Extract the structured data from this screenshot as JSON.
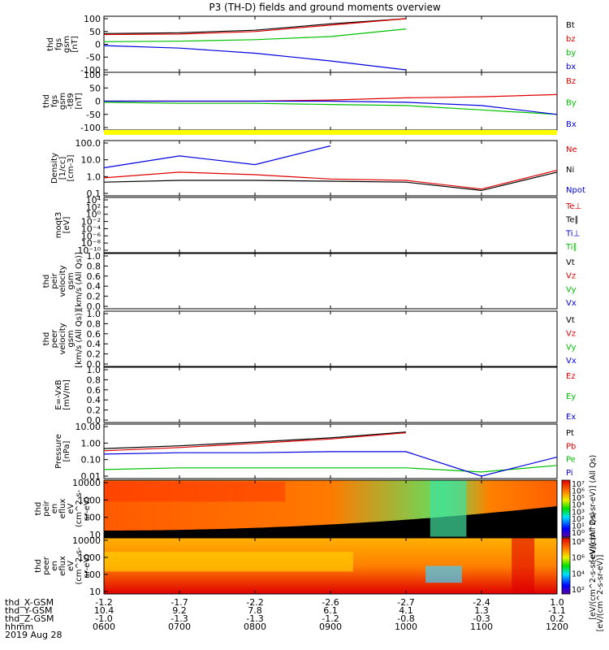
{
  "title": "P3 (TH-D) fields and ground moments overview",
  "date": "2019 Aug 28",
  "panels": [
    {
      "id": "fgs",
      "type": "line",
      "ylabel": [
        "thd",
        "fgs",
        "gsm",
        "[nT]"
      ],
      "yticks": [
        "100",
        "50",
        "0",
        "-50",
        "-100"
      ],
      "ylim": [
        -100,
        100
      ],
      "legend": [
        {
          "name": "Bt",
          "color": "#000000"
        },
        {
          "name": "bz",
          "color": "#e00000"
        },
        {
          "name": "by",
          "color": "#00c000"
        },
        {
          "name": "bx",
          "color": "#0000e0"
        }
      ]
    },
    {
      "id": "fgs_t89",
      "type": "line",
      "ylabel": [
        "thd",
        "fgs",
        "gsm",
        "-t89",
        "[nT]"
      ],
      "yticks": [
        "100",
        "50",
        "0",
        "-50",
        "-100"
      ],
      "ylim": [
        -120,
        120
      ],
      "legend": [
        {
          "name": "Bz",
          "color": "#e00000"
        },
        {
          "name": "By",
          "color": "#00c000"
        },
        {
          "name": "Bx",
          "color": "#0000e0"
        }
      ]
    },
    {
      "id": "density",
      "type": "line",
      "ylabel": [
        "Density",
        "[1/cc]",
        "[cm-3]"
      ],
      "yticks": [
        "100.0",
        "10.0",
        "1.0",
        "0.1"
      ],
      "scale": "log",
      "legend": [
        {
          "name": "Ne",
          "color": "#e00000"
        },
        {
          "name": "Ni",
          "color": "#000000"
        },
        {
          "name": "Npot",
          "color": "#0000e0"
        }
      ]
    },
    {
      "id": "temp",
      "type": "line",
      "ylabel": [
        "moqt3",
        "[eV]"
      ],
      "yticks": [
        "10⁴",
        "10²",
        "10⁰",
        "10⁻²",
        "10⁻⁴",
        "10⁻⁶",
        "10⁻⁸",
        "10⁻¹⁰"
      ],
      "scale": "log",
      "legend": [
        {
          "name": "Te⊥",
          "color": "#e00000"
        },
        {
          "name": "Te∥",
          "color": "#000000"
        },
        {
          "name": "Ti⊥",
          "color": "#0000e0"
        },
        {
          "name": "Ti∥",
          "color": "#00c000"
        }
      ]
    },
    {
      "id": "peir_vel",
      "type": "line",
      "ylabel": [
        "thd",
        "peir",
        "velocity",
        "gsm",
        "[km/s (All Qs)]"
      ],
      "yticks": [
        "1.0",
        "0.8",
        "0.6",
        "0.4",
        "0.2",
        "0.0"
      ],
      "ylim": [
        0,
        1
      ],
      "legend": [
        {
          "name": "Vt",
          "color": "#000000"
        },
        {
          "name": "Vz",
          "color": "#e00000"
        },
        {
          "name": "Vy",
          "color": "#00c000"
        },
        {
          "name": "Vx",
          "color": "#0000e0"
        }
      ]
    },
    {
      "id": "peer_vel",
      "type": "line",
      "ylabel": [
        "thd",
        "peer",
        "velocity",
        "gsm",
        "[km/s (All Qs)]"
      ],
      "yticks": [
        "1.0",
        "0.8",
        "0.6",
        "0.4",
        "0.2",
        "0.0"
      ],
      "ylim": [
        0,
        1
      ],
      "legend": [
        {
          "name": "Vt",
          "color": "#000000"
        },
        {
          "name": "Vz",
          "color": "#e00000"
        },
        {
          "name": "Vy",
          "color": "#00c000"
        },
        {
          "name": "Vx",
          "color": "#0000e0"
        }
      ]
    },
    {
      "id": "efield",
      "type": "line",
      "ylabel": [
        "E=-VxB",
        "[mV/m]"
      ],
      "yticks": [
        "1.0",
        "0.8",
        "0.6",
        "0.4",
        "0.2",
        "0.0"
      ],
      "ylim": [
        0,
        1
      ],
      "legend": [
        {
          "name": "Ez",
          "color": "#e00000"
        },
        {
          "name": "Ey",
          "color": "#00c000"
        },
        {
          "name": "Ex",
          "color": "#0000e0"
        }
      ]
    },
    {
      "id": "pressure",
      "type": "line",
      "ylabel": [
        "Pressure",
        "[nPa]"
      ],
      "yticks": [
        "10.00",
        "1.00",
        "0.10",
        "0.01"
      ],
      "scale": "log",
      "legend": [
        {
          "name": "Pt",
          "color": "#000000"
        },
        {
          "name": "Pb",
          "color": "#e00000"
        },
        {
          "name": "Pe",
          "color": "#00c000"
        },
        {
          "name": "Pi",
          "color": "#0000e0"
        }
      ]
    },
    {
      "id": "peir_spec",
      "type": "heatmap",
      "ylabel": [
        "thd",
        "peir",
        "en",
        "eflux",
        "eV",
        "(cm^2-s-",
        "sr-eV)"
      ],
      "yticks": [
        "10000",
        "1000",
        "100",
        "10"
      ],
      "colorbar": [
        "10⁷",
        "10⁶",
        "10⁵",
        "10⁴",
        "10³",
        "10²",
        "10¹",
        "10⁰"
      ],
      "cbar_label": "[eV/(cm^2-s-sr-eV)] (All Qs)"
    },
    {
      "id": "peer_spec",
      "type": "heatmap",
      "ylabel": [
        "thd",
        "peer",
        "en",
        "eflux",
        "eV",
        "(cm^2-s-",
        "sr-eV)"
      ],
      "yticks": [
        "10000",
        "1000",
        "100",
        "10"
      ],
      "colorbar": [
        "10⁸",
        "10⁶",
        "10⁴",
        "10²"
      ],
      "cbar_label": "[eV/(cm^2-s-sr-eV)] (All Qs)"
    }
  ],
  "xaxis": {
    "rows": [
      {
        "label": "thd_X-GSM",
        "values": [
          "-1.2",
          "-1.7",
          "-2.2",
          "-2.6",
          "-2.7",
          "-2.4",
          "1.0"
        ]
      },
      {
        "label": "thd_Y-GSM",
        "values": [
          "10.4",
          "9.2",
          "7.8",
          "6.1",
          "4.1",
          "1.3",
          "-1.1"
        ]
      },
      {
        "label": "thd_Z-GSM",
        "values": [
          "-1.0",
          "-1.3",
          "-1.3",
          "-1.2",
          "-0.8",
          "-0.3",
          "0.2"
        ]
      },
      {
        "label": "hhmm",
        "values": [
          "0600",
          "0700",
          "0800",
          "0900",
          "1000",
          "1100",
          "1200"
        ]
      }
    ]
  },
  "cbar_axis_label": "[eV/(cm^2-s-sr-eV)]",
  "chart_data": [
    {
      "type": "line",
      "title": "P3 (TH-D) fields and ground moments overview",
      "xlabel": "hhmm",
      "x": [
        "0600",
        "0700",
        "0800",
        "0900",
        "1000",
        "1100",
        "1200"
      ],
      "series": [
        {
          "name": "Bt",
          "values": [
            42,
            45,
            55,
            80,
            100,
            null,
            null
          ]
        },
        {
          "name": "bz",
          "values": [
            38,
            40,
            50,
            75,
            100,
            null,
            null
          ]
        },
        {
          "name": "by",
          "values": [
            10,
            12,
            18,
            30,
            60,
            null,
            null
          ]
        },
        {
          "name": "bx",
          "values": [
            -5,
            -15,
            -35,
            -65,
            -100,
            null,
            null
          ]
        }
      ],
      "ylim": [
        -100,
        100
      ]
    },
    {
      "type": "line",
      "x": [
        "0600",
        "0700",
        "0800",
        "0900",
        "1000",
        "1100",
        "1200"
      ],
      "series": [
        {
          "name": "Bz",
          "values": [
            0,
            0,
            0,
            5,
            15,
            20,
            30
          ]
        },
        {
          "name": "By",
          "values": [
            -5,
            -10,
            -10,
            -15,
            -20,
            -40,
            -60
          ]
        },
        {
          "name": "Bx",
          "values": [
            0,
            0,
            0,
            0,
            -5,
            -20,
            -60
          ]
        }
      ],
      "ylim": [
        -120,
        120
      ]
    },
    {
      "type": "line",
      "x": [
        "0600",
        "0700",
        "0800",
        "0900",
        "1000",
        "1100",
        "1200"
      ],
      "scale": "log",
      "series": [
        {
          "name": "Ne",
          "values": [
            0.6,
            1.5,
            1.0,
            0.5,
            0.4,
            0.1,
            2.0
          ]
        },
        {
          "name": "Ni",
          "values": [
            0.3,
            0.4,
            0.4,
            0.35,
            0.3,
            0.08,
            1.5
          ]
        },
        {
          "name": "Npot",
          "values": [
            3,
            20,
            5,
            100,
            null,
            null,
            null
          ]
        }
      ]
    },
    {
      "type": "line",
      "x": [
        "0600",
        "1200"
      ],
      "series": []
    },
    {
      "type": "line",
      "x": [
        "0600",
        "1200"
      ],
      "series": [],
      "ylim": [
        0,
        1
      ]
    },
    {
      "type": "line",
      "x": [
        "0600",
        "1200"
      ],
      "series": [],
      "ylim": [
        0,
        1
      ]
    },
    {
      "type": "line",
      "x": [
        "0600",
        "1200"
      ],
      "series": [],
      "ylim": [
        0,
        1
      ]
    },
    {
      "type": "line",
      "x": [
        "0600",
        "0700",
        "0800",
        "0900",
        "1000",
        "1100",
        "1200"
      ],
      "scale": "log",
      "series": [
        {
          "name": "Pt",
          "values": [
            0.5,
            0.8,
            1.5,
            3,
            8,
            null,
            null
          ]
        },
        {
          "name": "Pb",
          "values": [
            0.35,
            0.6,
            1.2,
            2.5,
            7,
            null,
            null
          ]
        },
        {
          "name": "Pe",
          "values": [
            0.015,
            0.02,
            0.02,
            0.02,
            0.02,
            0.01,
            0.03
          ]
        },
        {
          "name": "Pi",
          "values": [
            0.2,
            0.25,
            0.25,
            0.3,
            0.3,
            0.005,
            0.12
          ]
        }
      ]
    },
    {
      "type": "heatmap",
      "x": [
        "0600",
        "1200"
      ],
      "ylabel": "eV",
      "ylim": [
        10,
        20000
      ]
    },
    {
      "type": "heatmap",
      "x": [
        "0600",
        "1200"
      ],
      "ylabel": "eV",
      "ylim": [
        10,
        20000
      ]
    }
  ]
}
